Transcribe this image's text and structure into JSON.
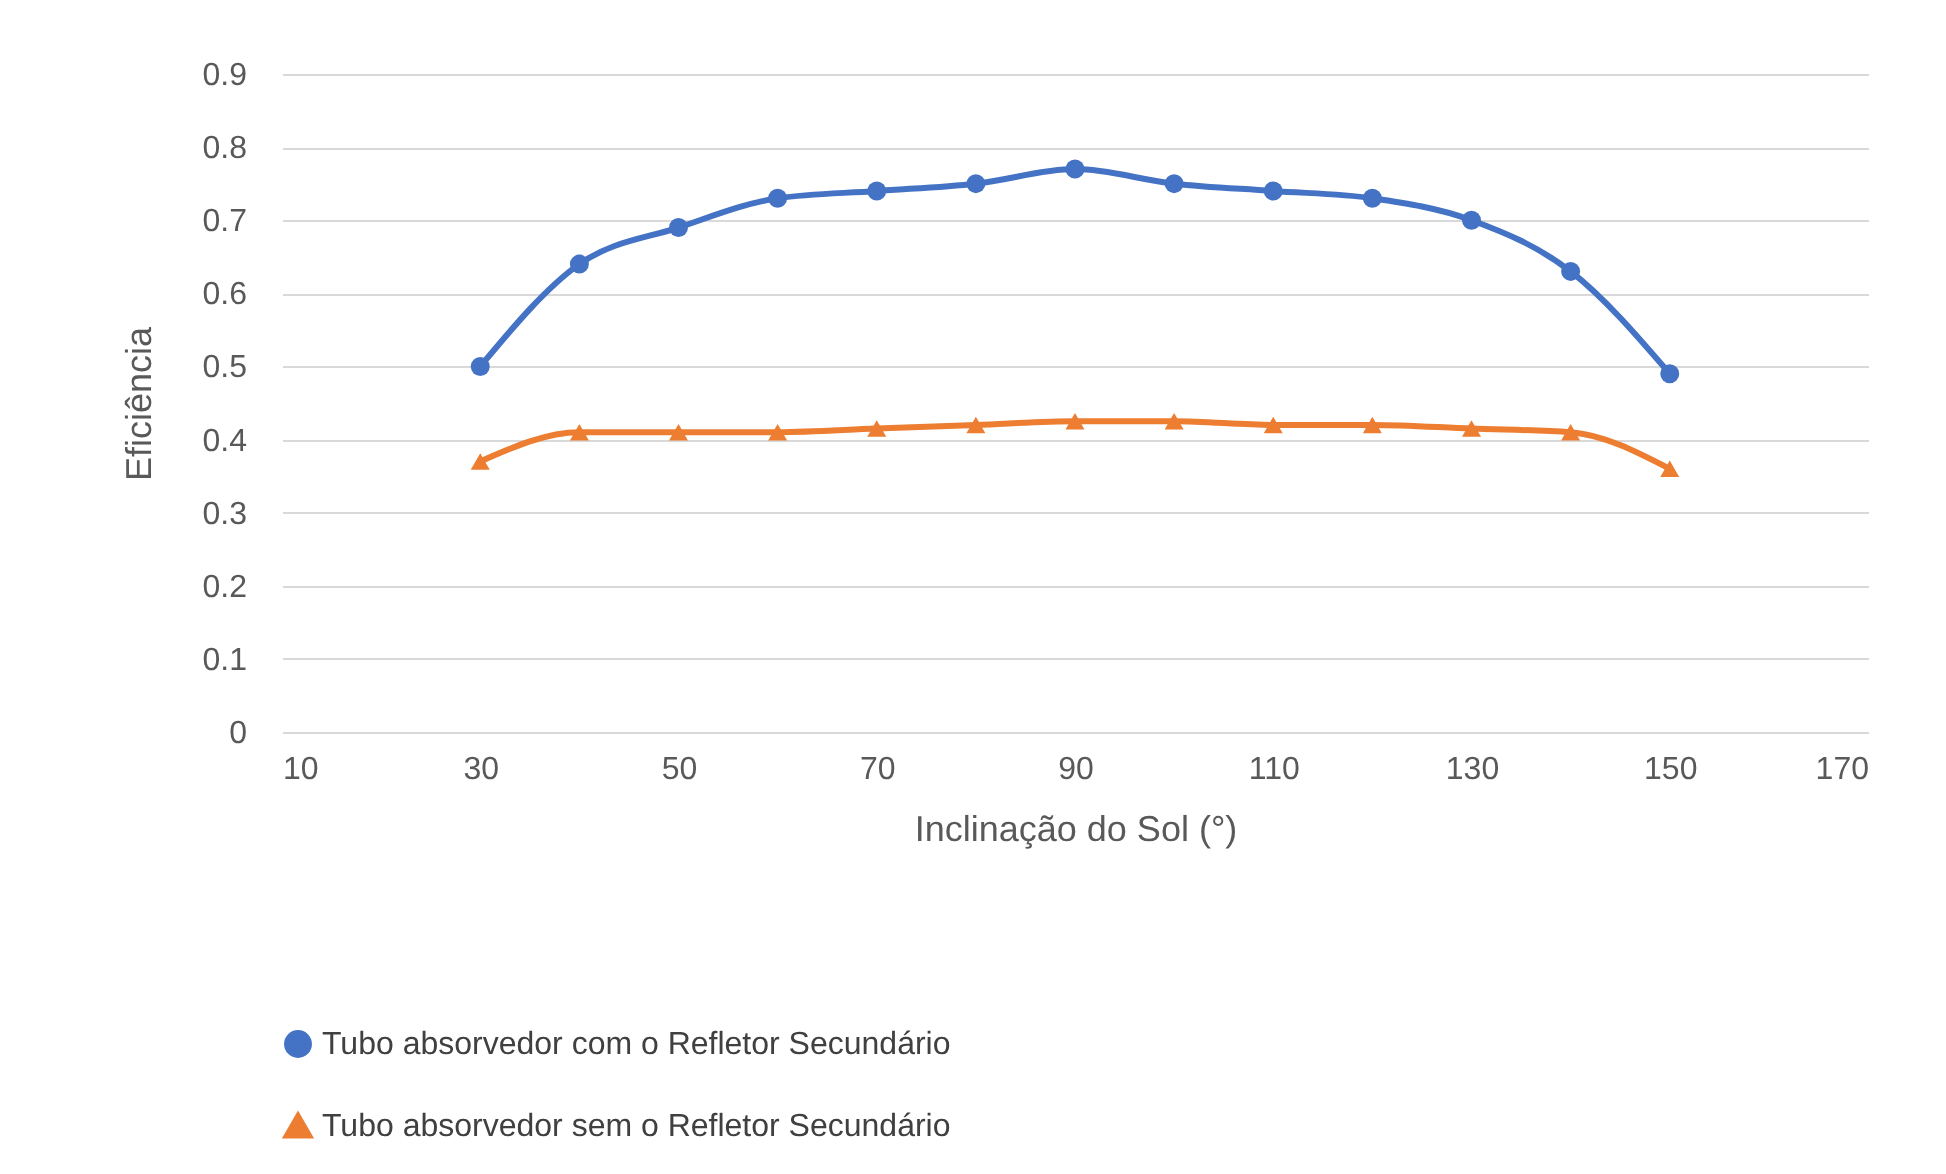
{
  "chart_data": {
    "type": "line",
    "xlabel": "Inclinação do Sol (°)",
    "ylabel": "Eficiência",
    "x": [
      30,
      40,
      50,
      60,
      70,
      80,
      90,
      100,
      110,
      120,
      130,
      140,
      150
    ],
    "series": [
      {
        "name": "Tubo absorvedor com o Refletor Secundário",
        "color": "#4472c4",
        "marker": "circle",
        "values": [
          0.5,
          0.64,
          0.69,
          0.73,
          0.74,
          0.75,
          0.77,
          0.75,
          0.74,
          0.73,
          0.7,
          0.63,
          0.49
        ]
      },
      {
        "name": "Tubo absorvedor sem o Refletor Secundário",
        "color": "#ed7d31",
        "marker": "triangle",
        "values": [
          0.37,
          0.41,
          0.41,
          0.41,
          0.415,
          0.42,
          0.425,
          0.425,
          0.42,
          0.42,
          0.415,
          0.41,
          0.36
        ]
      }
    ],
    "xlim": [
      10,
      170
    ],
    "xticks": [
      10,
      30,
      50,
      70,
      90,
      110,
      130,
      150,
      170
    ],
    "ylim": [
      0,
      0.9
    ],
    "yticks": [
      0,
      0.1,
      0.2,
      0.3,
      0.4,
      0.5,
      0.6,
      0.7,
      0.8,
      0.9
    ],
    "grid": "y",
    "legend": "bottom",
    "line_style": "solid"
  }
}
